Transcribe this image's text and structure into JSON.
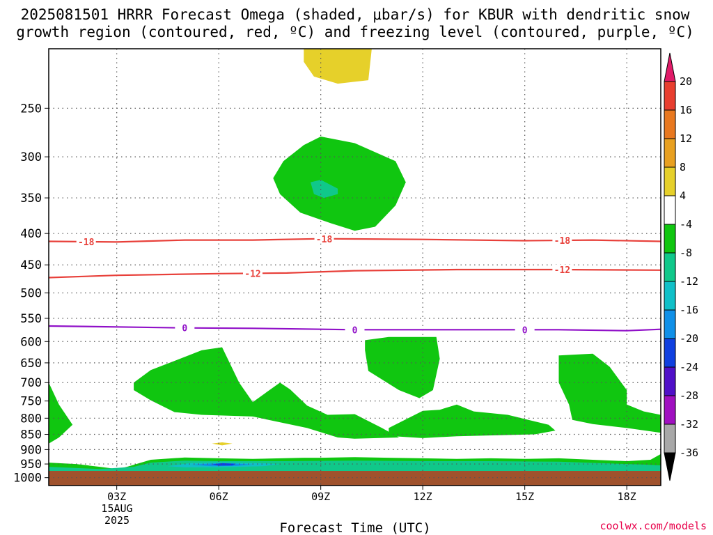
{
  "chart_data": {
    "type": "heatmap",
    "title_line1": "2025081501 HRRR Forecast Omega (shaded, μbar/s) for KBUR with dendritic snow",
    "title_line2": "growth region (contoured, red, ºC) and freezing level (contoured, purple, ºC)",
    "xlabel": "Forecast Time (UTC)",
    "date_label": [
      "15AUG",
      "2025"
    ],
    "credit": "coolwx.com/models",
    "x_ticks": [
      "03Z",
      "06Z",
      "09Z",
      "12Z",
      "15Z",
      "18Z"
    ],
    "x_range_hours": [
      1,
      19
    ],
    "y_scale": "log pressure (hPa), inverted",
    "y_ticks": [
      250,
      300,
      350,
      400,
      450,
      500,
      550,
      600,
      650,
      700,
      750,
      800,
      850,
      900,
      950,
      1000
    ],
    "y_range_hpa": [
      200,
      1030
    ],
    "grid": "dotted",
    "colorbar": {
      "labels": [
        "20",
        "16",
        "12",
        "8",
        "4",
        "-4",
        "-8",
        "-12",
        "-16",
        "-20",
        "-24",
        "-28",
        "-32",
        "-36"
      ],
      "colors": [
        "#e11a68",
        "#e83e2f",
        "#e8781f",
        "#e8a020",
        "#e6d02a",
        "#ffffff",
        "#10c610",
        "#10c88a",
        "#10c0c8",
        "#1090e8",
        "#1040e0",
        "#5010c8",
        "#a010c0",
        "#a8a8a8",
        "#000000"
      ]
    },
    "contour_labels": {
      "dgz_minus18": [
        "-18",
        "-18",
        "-18"
      ],
      "dgz_minus12": [
        "-12",
        "-12"
      ],
      "freezing": [
        "0",
        "0",
        "0"
      ]
    },
    "contours": [
      {
        "name": "-18",
        "color": "#e8403a",
        "points": [
          [
            1.0,
            412
          ],
          [
            3.0,
            413
          ],
          [
            5.0,
            410
          ],
          [
            7.0,
            410
          ],
          [
            9.0,
            408
          ],
          [
            12.0,
            409
          ],
          [
            15.0,
            411
          ],
          [
            17.0,
            410
          ],
          [
            19.0,
            412
          ]
        ]
      },
      {
        "name": "-12",
        "color": "#e8403a",
        "points": [
          [
            1.0,
            472
          ],
          [
            3.0,
            468
          ],
          [
            6.0,
            465
          ],
          [
            8.0,
            464
          ],
          [
            10.0,
            460
          ],
          [
            13.0,
            458
          ],
          [
            16.0,
            458
          ],
          [
            19.0,
            459
          ]
        ]
      },
      {
        "name": "0",
        "color": "#9010c8",
        "points": [
          [
            1.0,
            566
          ],
          [
            3.0,
            568
          ],
          [
            5.0,
            570
          ],
          [
            7.0,
            571
          ],
          [
            10.0,
            574
          ],
          [
            13.0,
            574
          ],
          [
            16.0,
            574
          ],
          [
            18.0,
            576
          ],
          [
            19.0,
            573
          ]
        ]
      }
    ],
    "omega_regions": [
      {
        "band": "4 to 8",
        "points": [
          [
            8.5,
            200
          ],
          [
            10.5,
            200
          ],
          [
            10.4,
            225
          ],
          [
            9.5,
            228
          ],
          [
            8.8,
            222
          ],
          [
            8.5,
            210
          ]
        ]
      },
      {
        "band": "-4 to -8",
        "points": [
          [
            8.5,
            287
          ],
          [
            9.0,
            278
          ],
          [
            10.0,
            285
          ],
          [
            11.2,
            305
          ],
          [
            11.5,
            330
          ],
          [
            11.2,
            360
          ],
          [
            10.6,
            390
          ],
          [
            10.0,
            396
          ],
          [
            9.3,
            385
          ],
          [
            8.4,
            370
          ],
          [
            7.8,
            345
          ],
          [
            7.6,
            325
          ],
          [
            7.9,
            305
          ]
        ]
      },
      {
        "band": "-8 to -12",
        "points": [
          [
            8.7,
            330
          ],
          [
            9.0,
            327
          ],
          [
            9.5,
            338
          ],
          [
            9.5,
            345
          ],
          [
            9.1,
            350
          ],
          [
            8.8,
            345
          ]
        ]
      },
      {
        "band": "-4 to -8",
        "points": [
          [
            4.0,
            668
          ],
          [
            5.5,
            620
          ],
          [
            6.1,
            613
          ],
          [
            6.6,
            700
          ],
          [
            7.0,
            753
          ],
          [
            7.8,
            700
          ],
          [
            8.1,
            718
          ],
          [
            8.6,
            763
          ],
          [
            9.2,
            790
          ],
          [
            10.0,
            788
          ],
          [
            10.8,
            830
          ],
          [
            11.3,
            860
          ],
          [
            10.0,
            864
          ],
          [
            9.5,
            860
          ],
          [
            8.6,
            830
          ],
          [
            7.0,
            795
          ],
          [
            5.5,
            790
          ],
          [
            4.7,
            782
          ],
          [
            4.0,
            748
          ],
          [
            3.5,
            720
          ],
          [
            3.5,
            700
          ]
        ]
      },
      {
        "band": "-4 to -8",
        "points": [
          [
            10.3,
            597
          ],
          [
            11.0,
            590
          ],
          [
            12.4,
            590
          ],
          [
            12.5,
            640
          ],
          [
            12.3,
            720
          ],
          [
            11.9,
            742
          ],
          [
            11.3,
            720
          ],
          [
            10.4,
            670
          ],
          [
            10.3,
            620
          ]
        ]
      },
      {
        "band": "-4 to -8",
        "points": [
          [
            11.0,
            830
          ],
          [
            12.0,
            778
          ],
          [
            12.5,
            775
          ],
          [
            13.0,
            760
          ],
          [
            13.5,
            780
          ],
          [
            14.5,
            790
          ],
          [
            15.7,
            820
          ],
          [
            15.9,
            838
          ],
          [
            15.3,
            850
          ],
          [
            13.0,
            856
          ],
          [
            12.0,
            862
          ],
          [
            11.0,
            855
          ]
        ]
      },
      {
        "band": "-4 to -8",
        "points": [
          [
            16.0,
            632
          ],
          [
            17.0,
            628
          ],
          [
            17.5,
            660
          ],
          [
            18.0,
            720
          ],
          [
            18.0,
            760
          ],
          [
            18.5,
            780
          ],
          [
            19.0,
            790
          ],
          [
            19.0,
            845
          ],
          [
            18.0,
            830
          ],
          [
            17.0,
            818
          ],
          [
            16.4,
            805
          ],
          [
            16.3,
            760
          ],
          [
            16.0,
            700
          ]
        ]
      },
      {
        "band": "-4 to -8",
        "points": [
          [
            1.0,
            700
          ],
          [
            1.3,
            760
          ],
          [
            1.7,
            820
          ],
          [
            1.3,
            860
          ],
          [
            1.0,
            880
          ]
        ]
      },
      {
        "band": "-4 to -8",
        "points": [
          [
            1.0,
            945
          ],
          [
            1.8,
            950
          ],
          [
            2.5,
            960
          ],
          [
            3.0,
            968
          ],
          [
            3.3,
            960
          ],
          [
            4.0,
            935
          ],
          [
            5.0,
            927
          ],
          [
            6.0,
            930
          ],
          [
            7.0,
            932
          ],
          [
            8.5,
            928
          ],
          [
            9.0,
            928
          ],
          [
            10.0,
            926
          ],
          [
            11.0,
            928
          ],
          [
            12.0,
            930
          ],
          [
            13.0,
            932
          ],
          [
            14.0,
            930
          ],
          [
            15.0,
            932
          ],
          [
            16.0,
            930
          ],
          [
            17.0,
            935
          ],
          [
            18.0,
            940
          ],
          [
            18.7,
            935
          ],
          [
            19.0,
            915
          ],
          [
            19.0,
            975
          ],
          [
            1.0,
            975
          ]
        ]
      },
      {
        "band": "-8 to -12",
        "points": [
          [
            1.0,
            960
          ],
          [
            2.5,
            968
          ],
          [
            3.5,
            960
          ],
          [
            4.0,
            945
          ],
          [
            5.0,
            938
          ],
          [
            6.0,
            940
          ],
          [
            8.0,
            940
          ],
          [
            10.0,
            938
          ],
          [
            12.0,
            940
          ],
          [
            14.0,
            940
          ],
          [
            16.0,
            942
          ],
          [
            17.5,
            948
          ],
          [
            18.5,
            952
          ],
          [
            19.0,
            955
          ],
          [
            19.0,
            975
          ],
          [
            1.0,
            975
          ]
        ]
      },
      {
        "band": "-12 to -16",
        "points": [
          [
            4.5,
            958
          ],
          [
            5.2,
            946
          ],
          [
            6.0,
            944
          ],
          [
            7.0,
            946
          ],
          [
            7.8,
            950
          ],
          [
            7.3,
            958
          ],
          [
            6.0,
            962
          ],
          [
            5.0,
            962
          ]
        ]
      },
      {
        "band": "-16 to -20",
        "points": [
          [
            5.2,
            953
          ],
          [
            5.8,
            948
          ],
          [
            6.4,
            948
          ],
          [
            7.0,
            952
          ],
          [
            6.5,
            957
          ],
          [
            5.8,
            958
          ]
        ]
      },
      {
        "band": "-20 to -24",
        "points": [
          [
            5.8,
            951
          ],
          [
            6.1,
            947
          ],
          [
            6.5,
            949
          ],
          [
            6.4,
            955
          ],
          [
            6.0,
            956
          ]
        ]
      },
      {
        "band": "4 to 8",
        "points": [
          [
            5.8,
            880
          ],
          [
            6.1,
            876
          ],
          [
            6.4,
            880
          ],
          [
            6.1,
            886
          ]
        ]
      }
    ],
    "terrain_color": "#a0522d",
    "terrain_top_hpa": 975
  }
}
